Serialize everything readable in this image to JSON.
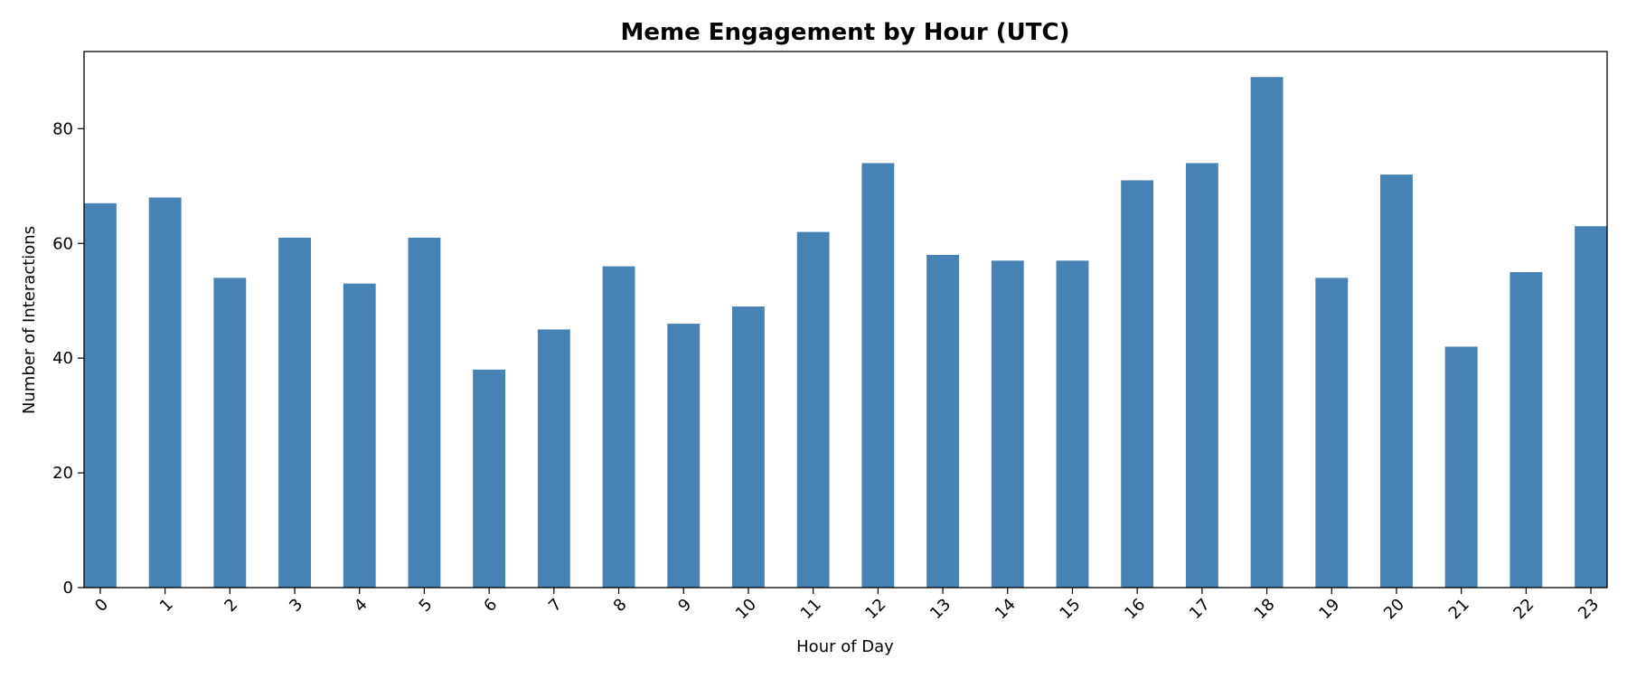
{
  "chart_data": {
    "type": "bar",
    "title": "Meme Engagement by Hour (UTC)",
    "xlabel": "Hour of Day",
    "ylabel": "Number of Interactions",
    "categories": [
      "0",
      "1",
      "2",
      "3",
      "4",
      "5",
      "6",
      "7",
      "8",
      "9",
      "10",
      "11",
      "12",
      "13",
      "14",
      "15",
      "16",
      "17",
      "18",
      "19",
      "20",
      "21",
      "22",
      "23"
    ],
    "values": [
      67,
      68,
      54,
      61,
      53,
      61,
      38,
      45,
      56,
      46,
      49,
      62,
      74,
      58,
      57,
      57,
      71,
      74,
      89,
      54,
      72,
      42,
      55,
      63
    ],
    "ylim": [
      0,
      93.45
    ],
    "yticks": [
      0,
      20,
      40,
      60,
      80
    ],
    "bar_color": "#4682b4",
    "grid": false,
    "legend": "none",
    "xtick_rotation": 45
  }
}
